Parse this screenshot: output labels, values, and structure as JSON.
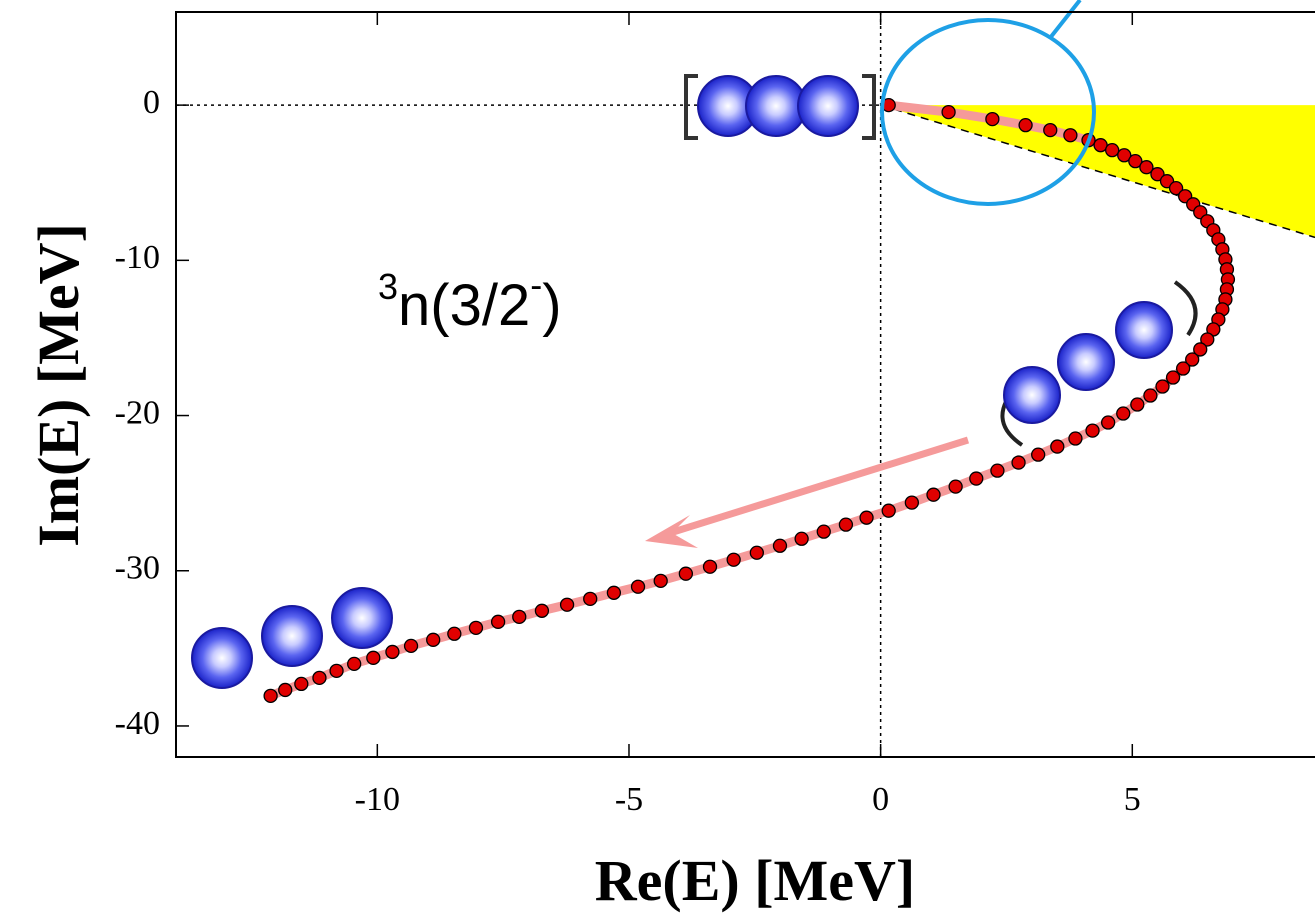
{
  "chart_data": {
    "type": "scatter",
    "xlabel": "Re(E) [MeV]",
    "ylabel": "Im(E) [MeV]",
    "annotation": {
      "pre": "3",
      "main": "n(3/2",
      "sup": "-",
      "post": ")"
    },
    "xlim": [
      -14,
      8.63
    ],
    "ylim": [
      -42,
      6
    ],
    "xticks": [
      -10,
      -5,
      0,
      5
    ],
    "yticks": [
      0,
      -10,
      -20,
      -30,
      -40
    ],
    "reference_lines": {
      "x": 0,
      "y": 0
    },
    "cut_line": {
      "x": [
        0,
        8.63
      ],
      "y": [
        0,
        -8.52
      ],
      "shade_color": "#ffff00"
    },
    "x": [
      0.16,
      1.35,
      2.22,
      2.88,
      3.37,
      3.77,
      4.13,
      4.37,
      4.6,
      4.84,
      5.06,
      5.28,
      5.5,
      5.69,
      5.87,
      6.05,
      6.21,
      6.35,
      6.49,
      6.61,
      6.71,
      6.79,
      6.85,
      6.88,
      6.9,
      6.88,
      6.85,
      6.79,
      6.71,
      6.61,
      6.49,
      6.35,
      6.19,
      6.01,
      5.81,
      5.6,
      5.36,
      5.1,
      4.82,
      4.52,
      4.21,
      3.87,
      3.51,
      3.13,
      2.74,
      2.32,
      1.9,
      1.49,
      1.05,
      0.62,
      0.16,
      -0.28,
      -0.69,
      -1.13,
      -1.57,
      -2.0,
      -2.46,
      -2.92,
      -3.39,
      -3.87,
      -4.37,
      -4.82,
      -5.3,
      -5.77,
      -6.23,
      -6.73,
      -7.18,
      -7.6,
      -8.04,
      -8.47,
      -8.89,
      -9.33,
      -9.7,
      -10.08,
      -10.46,
      -10.81,
      -11.15,
      -11.51,
      -11.83,
      -12.12
    ],
    "series": [
      {
        "color": "#e00000",
        "line_color": "#f59a9a",
        "values": [
          0,
          -0.45,
          -0.9,
          -1.29,
          -1.61,
          -1.94,
          -2.26,
          -2.58,
          -2.9,
          -3.23,
          -3.61,
          -4.0,
          -4.45,
          -4.9,
          -5.35,
          -5.87,
          -6.39,
          -6.9,
          -7.48,
          -8.06,
          -8.65,
          -9.29,
          -9.94,
          -10.58,
          -11.23,
          -11.87,
          -12.52,
          -13.16,
          -13.81,
          -14.45,
          -15.1,
          -15.74,
          -16.39,
          -16.97,
          -17.55,
          -18.13,
          -18.71,
          -19.29,
          -19.87,
          -20.45,
          -20.97,
          -21.48,
          -22.0,
          -22.52,
          -23.03,
          -23.55,
          -24.06,
          -24.58,
          -25.1,
          -25.61,
          -26.13,
          -26.58,
          -27.03,
          -27.48,
          -27.94,
          -28.39,
          -28.84,
          -29.29,
          -29.74,
          -30.19,
          -30.65,
          -31.03,
          -31.42,
          -31.81,
          -32.19,
          -32.58,
          -32.97,
          -33.29,
          -33.68,
          -34.06,
          -34.45,
          -34.84,
          -35.23,
          -35.61,
          -36.0,
          -36.45,
          -36.9,
          -37.29,
          -37.68,
          -38.06
        ]
      }
    ]
  }
}
